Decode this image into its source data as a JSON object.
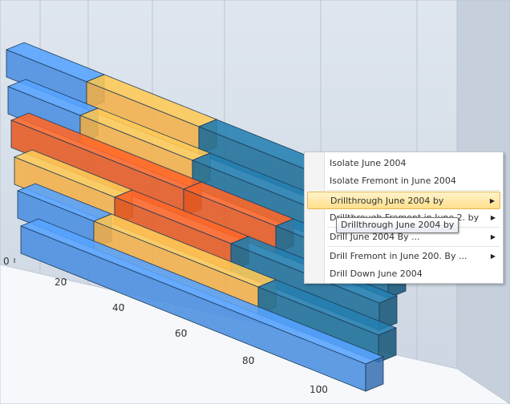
{
  "chart": {
    "axis_ticks": [
      "0",
      "20",
      "40",
      "60",
      "80",
      "100"
    ],
    "colors": {
      "blue": "#4a8ee0",
      "orange": "#f3b04a",
      "red": "#e65a22",
      "teal": "#1f6f99",
      "wall": "#d7e0ea"
    }
  },
  "context_menu": {
    "items": [
      {
        "label": "Isolate June 2004",
        "has_submenu": false
      },
      {
        "label": "Isolate Fremont in June 2004",
        "has_submenu": false
      },
      {
        "label": "Drillthrough June 2004 by",
        "has_submenu": true,
        "active": true
      },
      {
        "label": "Drillthrough Fremont in June 2. by",
        "has_submenu": true
      },
      {
        "label": "Drill June 2004 By ...",
        "has_submenu": true
      },
      {
        "label": "Drill Fremont in June 200. By ...",
        "has_submenu": true
      },
      {
        "label": "Drill Down June 2004",
        "has_submenu": false
      }
    ],
    "submenu_arrow": "▶"
  },
  "tooltip": {
    "text": "Drillthrough June 2004 by"
  }
}
